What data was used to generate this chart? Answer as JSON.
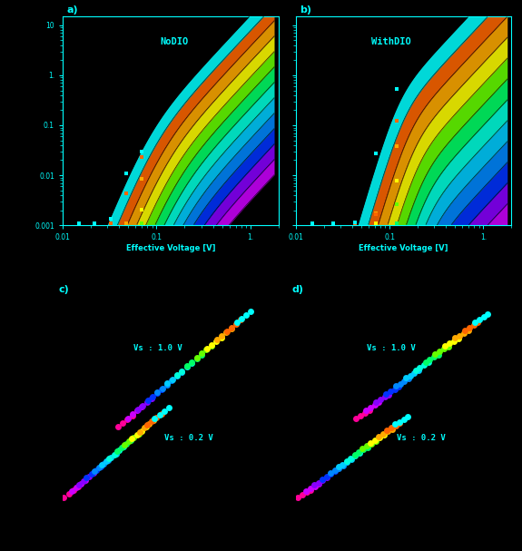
{
  "background_color": "#000000",
  "text_color": "#00ffff",
  "n_curves": 13,
  "label_a": "NoDIO",
  "label_b": "WithDIO",
  "xlabel": "Effective Voltage [V]",
  "xlim_log": [
    0.01,
    2.0
  ],
  "ylim_log": [
    0.001,
    15.0
  ],
  "yticks_log": [
    0.001,
    0.01,
    0.1,
    1.0,
    10.0
  ],
  "ytick_labels_log": [
    "0.001",
    "0.01",
    "0.1",
    "1.",
    "10"
  ],
  "xtick_labels_log": [
    "0.01",
    "0.1",
    "1."
  ],
  "label_Vs_high": "Vs : 1.0 V",
  "label_Vs_low": "Vs : 0.2 V",
  "panel_labels": [
    "a)",
    "b)",
    "c)",
    "d)"
  ],
  "colors": [
    "#ff0088",
    "#dd00ff",
    "#9900ff",
    "#4400ff",
    "#0000ff",
    "#0066ff",
    "#00ccff",
    "#00ffaa",
    "#00ff00",
    "#aaff00",
    "#ffff00",
    "#ffaa00",
    "#ff4400",
    "#ff0000",
    "#00ffff"
  ]
}
